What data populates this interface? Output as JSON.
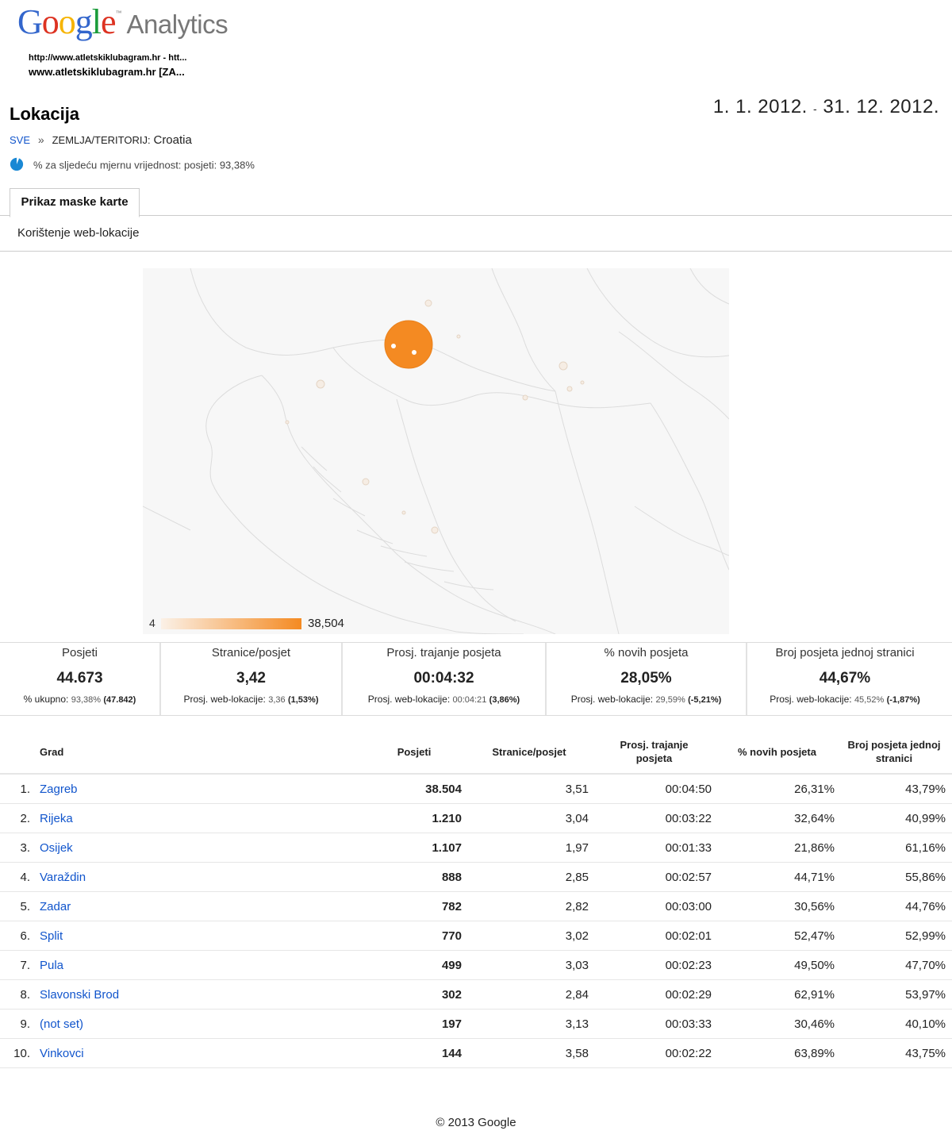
{
  "brand": {
    "google": "Google",
    "product": "Analytics",
    "colors": [
      "#3366cc",
      "#dd3322",
      "#f6b400",
      "#3366cc",
      "#1a9b3a",
      "#dd3322"
    ]
  },
  "site": {
    "url": "http://www.atletskiklubagram.hr - htt...",
    "profile": "www.atletskiklubagram.hr [ZA..."
  },
  "report": {
    "title": "Lokacija",
    "date_start": "1. 1. 2012.",
    "date_sep": "-",
    "date_end": "31. 12. 2012."
  },
  "breadcrumb": {
    "root": "SVE",
    "separator": "»",
    "dimension": "ZEMLJA/TERITORIJ:",
    "value": "Croatia"
  },
  "percentage_note": "% za sljedeću mjernu vrijednost: posjeti: 93,38%",
  "tabs": {
    "active": "Prikaz maske karte",
    "sub": "Korištenje web-lokacije"
  },
  "map": {
    "legend_min": "4",
    "legend_max": "38,504",
    "colors": {
      "low": "#fbf1e7",
      "high": "#f48a22"
    }
  },
  "scorecards": [
    {
      "label": "Posjeti",
      "value": "44.673",
      "sub_label": "% ukupno:",
      "sub_value": "93,38%",
      "sub_extra": "(47.842)"
    },
    {
      "label": "Stranice/posjet",
      "value": "3,42",
      "sub_label": "Prosj. web-lokacije:",
      "sub_value": "3,36",
      "sub_extra": "(1,53%)"
    },
    {
      "label": "Prosj. trajanje posjeta",
      "value": "00:04:32",
      "sub_label": "Prosj. web-lokacije:",
      "sub_value": "00:04:21",
      "sub_extra": "(3,86%)"
    },
    {
      "label": "% novih posjeta",
      "value": "28,05%",
      "sub_label": "Prosj. web-lokacije:",
      "sub_value": "29,59%",
      "sub_extra": "(-5,21%)"
    },
    {
      "label": "Broj posjeta jednoj stranici",
      "value": "44,67%",
      "sub_label": "Prosj. web-lokacije:",
      "sub_value": "45,52%",
      "sub_extra": "(-1,87%)"
    }
  ],
  "table": {
    "headers": {
      "city": "Grad",
      "visits": "Posjeti",
      "pages": "Stranice/posjet",
      "duration_1": "Prosj. trajanje",
      "duration_2": "posjeta",
      "new": "% novih posjeta",
      "bounce_1": "Broj posjeta jednoj",
      "bounce_2": "stranici"
    },
    "rows": [
      {
        "rank": "1.",
        "city": "Zagreb",
        "visits": "38.504",
        "pages": "3,51",
        "duration": "00:04:50",
        "new": "26,31%",
        "bounce": "43,79%"
      },
      {
        "rank": "2.",
        "city": "Rijeka",
        "visits": "1.210",
        "pages": "3,04",
        "duration": "00:03:22",
        "new": "32,64%",
        "bounce": "40,99%"
      },
      {
        "rank": "3.",
        "city": "Osijek",
        "visits": "1.107",
        "pages": "1,97",
        "duration": "00:01:33",
        "new": "21,86%",
        "bounce": "61,16%"
      },
      {
        "rank": "4.",
        "city": "Varaždin",
        "visits": "888",
        "pages": "2,85",
        "duration": "00:02:57",
        "new": "44,71%",
        "bounce": "55,86%"
      },
      {
        "rank": "5.",
        "city": "Zadar",
        "visits": "782",
        "pages": "2,82",
        "duration": "00:03:00",
        "new": "30,56%",
        "bounce": "44,76%"
      },
      {
        "rank": "6.",
        "city": "Split",
        "visits": "770",
        "pages": "3,02",
        "duration": "00:02:01",
        "new": "52,47%",
        "bounce": "52,99%"
      },
      {
        "rank": "7.",
        "city": "Pula",
        "visits": "499",
        "pages": "3,03",
        "duration": "00:02:23",
        "new": "49,50%",
        "bounce": "47,70%"
      },
      {
        "rank": "8.",
        "city": "Slavonski Brod",
        "visits": "302",
        "pages": "2,84",
        "duration": "00:02:29",
        "new": "62,91%",
        "bounce": "53,97%"
      },
      {
        "rank": "9.",
        "city": "(not set)",
        "visits": "197",
        "pages": "3,13",
        "duration": "00:03:33",
        "new": "30,46%",
        "bounce": "40,10%"
      },
      {
        "rank": "10.",
        "city": "Vinkovci",
        "visits": "144",
        "pages": "3,58",
        "duration": "00:02:22",
        "new": "63,89%",
        "bounce": "43,75%"
      }
    ]
  },
  "footer": "© 2013 Google"
}
